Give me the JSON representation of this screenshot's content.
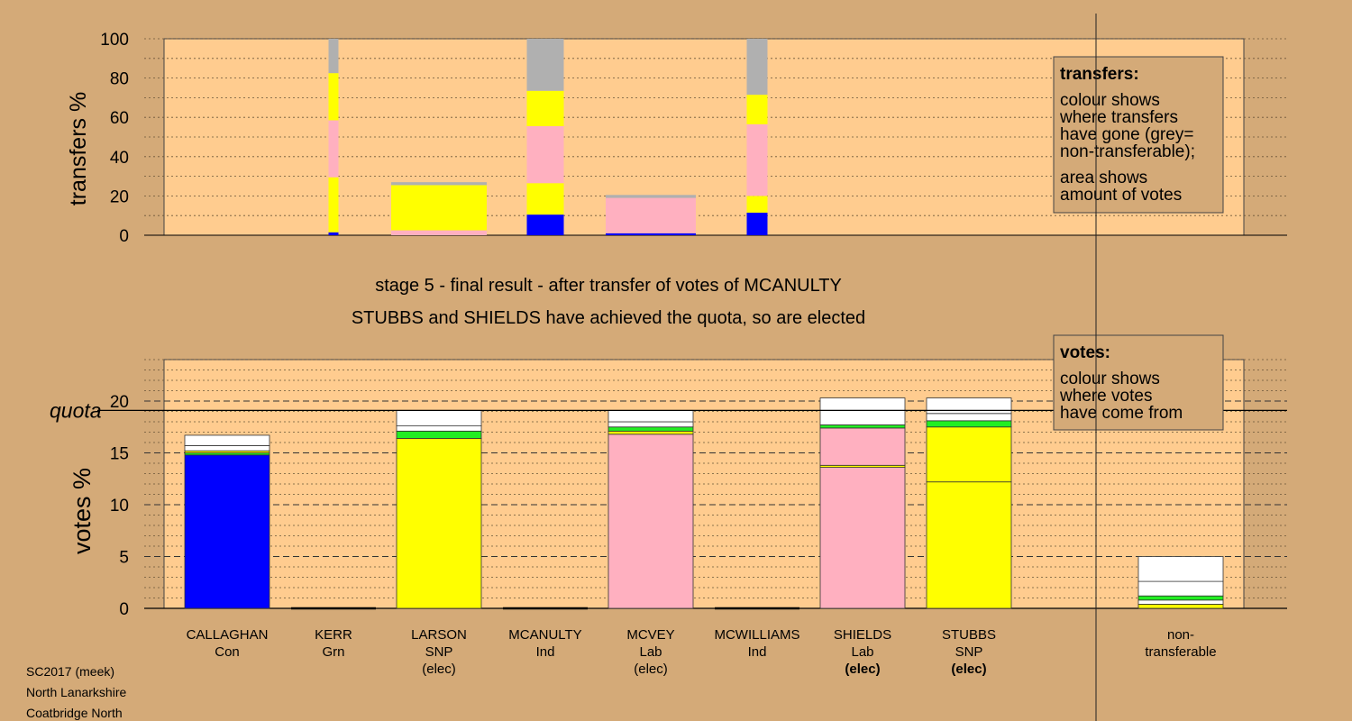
{
  "chart_data": [
    {
      "type": "bar",
      "subtype": "stacked",
      "ylabel": "transfers %",
      "ylim": [
        0,
        100
      ],
      "yticks": [
        0,
        20,
        40,
        60,
        80,
        100
      ],
      "grid": true,
      "candidates": [
        "CALLAGHAN",
        "KERR",
        "LARSON",
        "MCANULTY",
        "MCVEY",
        "MCWILLIAMS",
        "SHIELDS",
        "STUBBS"
      ],
      "colors": {
        "blue": "#0000ff",
        "yellow": "#ffff00",
        "pink": "#ffb0c0",
        "grey": "#b0b0b0",
        "green": "#22ee22",
        "white": "#ffffff"
      },
      "stacks": [
        {
          "candidate": "KERR",
          "segments": [
            [
              "blue",
              1.5
            ],
            [
              "yellow",
              28
            ],
            [
              "pink",
              29
            ],
            [
              "yellow",
              24
            ],
            [
              "grey",
              17.5
            ]
          ]
        },
        {
          "candidate": "LARSON",
          "segments": [
            [
              "pink",
              2.5
            ],
            [
              "yellow",
              23
            ],
            [
              "grey",
              1.5
            ]
          ]
        },
        {
          "candidate": "MCANULTY",
          "segments": [
            [
              "blue",
              10.5
            ],
            [
              "yellow",
              16
            ],
            [
              "pink",
              29
            ],
            [
              "yellow",
              18
            ],
            [
              "grey",
              26.5
            ]
          ]
        },
        {
          "candidate": "MCVEY",
          "segments": [
            [
              "blue",
              1
            ],
            [
              "pink",
              18
            ],
            [
              "grey",
              1.5
            ]
          ]
        },
        {
          "candidate": "MCWILLIAMS",
          "segments": [
            [
              "blue",
              11.5
            ],
            [
              "yellow",
              8.5
            ],
            [
              "pink",
              36.5
            ],
            [
              "yellow",
              15
            ],
            [
              "grey",
              28.5
            ]
          ]
        }
      ],
      "legend": {
        "title": "transfers:",
        "lines1": [
          "colour shows",
          "where transfers",
          "have gone (grey=",
          "non-transferable);"
        ],
        "lines2": [
          "area shows",
          "amount of votes"
        ]
      }
    },
    {
      "type": "bar",
      "subtype": "stacked",
      "ylabel": "votes %",
      "ylim": [
        0,
        24
      ],
      "yticks": [
        0,
        5,
        10,
        15,
        20
      ],
      "quota": 19.1,
      "quota_label": "quota",
      "grid": true,
      "categories": [
        {
          "name": "CALLAGHAN",
          "party": "Con",
          "status": "",
          "elected_now": false,
          "segments": [
            [
              "blue",
              14.8
            ],
            [
              "green",
              0.2
            ],
            [
              "yellow",
              0.2
            ],
            [
              "white",
              0.5
            ],
            [
              "white",
              1.0
            ]
          ]
        },
        {
          "name": "KERR",
          "party": "Grn",
          "status": "",
          "elected_now": false,
          "segments": []
        },
        {
          "name": "LARSON",
          "party": "SNP",
          "status": "(elec)",
          "elected_now": false,
          "segments": [
            [
              "yellow",
              16.4
            ],
            [
              "green",
              0.7
            ],
            [
              "white",
              0.5
            ],
            [
              "white",
              1.5
            ]
          ]
        },
        {
          "name": "MCANULTY",
          "party": "Ind",
          "status": "",
          "elected_now": false,
          "segments": []
        },
        {
          "name": "MCVEY",
          "party": "Lab",
          "status": "(elec)",
          "elected_now": false,
          "segments": [
            [
              "pink",
              16.8
            ],
            [
              "yellow",
              0.3
            ],
            [
              "green",
              0.4
            ],
            [
              "white",
              0.5
            ],
            [
              "white",
              1.1
            ]
          ]
        },
        {
          "name": "MCWILLIAMS",
          "party": "Ind",
          "status": "",
          "elected_now": false,
          "segments": []
        },
        {
          "name": "SHIELDS",
          "party": "Lab",
          "status": "(elec)",
          "elected_now": true,
          "segments": [
            [
              "pink",
              13.6
            ],
            [
              "yellow",
              0.2
            ],
            [
              "pink",
              3.6
            ],
            [
              "green",
              0.3
            ],
            [
              "white",
              1.4
            ],
            [
              "white",
              1.2
            ]
          ]
        },
        {
          "name": "STUBBS",
          "party": "SNP",
          "status": "(elec)",
          "elected_now": true,
          "segments": [
            [
              "yellow",
              12.2
            ],
            [
              "yellow",
              5.3
            ],
            [
              "green",
              0.6
            ],
            [
              "white",
              0.7
            ],
            [
              "white",
              1.5
            ]
          ]
        },
        {
          "name": "non-",
          "party": "transferable",
          "status": "",
          "elected_now": false,
          "segments": [
            [
              "yellow",
              0.4
            ],
            [
              "white",
              0.4
            ],
            [
              "green",
              0.4
            ],
            [
              "white",
              1.4
            ],
            [
              "white",
              2.4
            ]
          ]
        }
      ],
      "legend": {
        "title": "votes:",
        "lines1": [
          "colour shows",
          "where votes",
          "have come from"
        ]
      }
    }
  ],
  "headings": {
    "stage": "stage 5 - final result - after transfer of votes of MCANULTY",
    "elected": "STUBBS and SHIELDS have achieved the quota, so are elected"
  },
  "footer": {
    "line1": "SC2017 (meek)",
    "line2": "North Lanarkshire",
    "line3": "Coatbridge North"
  }
}
